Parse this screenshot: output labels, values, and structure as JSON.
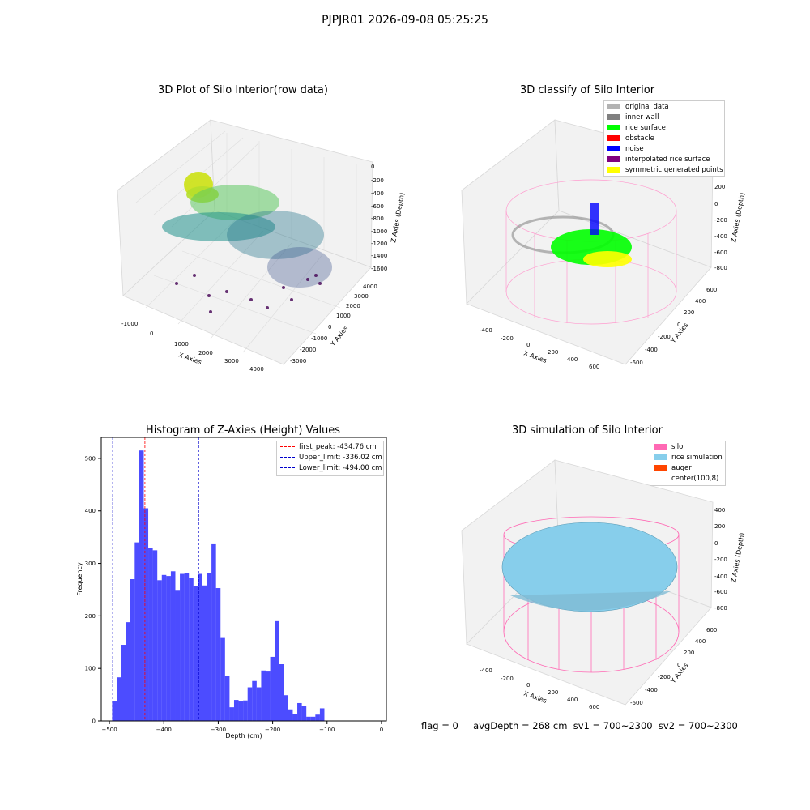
{
  "suptitle": "PJPJR01 2026-09-08 05:25:25",
  "panels": {
    "raw": {
      "title": "3D Plot of Silo Interior(row data)",
      "xlabel": "X Axies",
      "ylabel": "Y Axies",
      "zlabel": "Z Axies (Depth)",
      "xticks": [
        "-1000",
        "0",
        "1000",
        "2000",
        "3000",
        "4000"
      ],
      "yticks": [
        "-3000",
        "-2000",
        "-1000",
        "0",
        "1000",
        "2000",
        "3000",
        "4000"
      ],
      "zticks": [
        "0",
        "-200",
        "-400",
        "-600",
        "-800",
        "-1000",
        "-1200",
        "-1400",
        "-1600"
      ]
    },
    "classify": {
      "title": "3D classify of Silo Interior",
      "xlabel": "X Axies",
      "ylabel": "Y Axies",
      "zlabel": "Z Axies (Depth)",
      "xticks": [
        "-400",
        "-200",
        "0",
        "200",
        "400",
        "600"
      ],
      "yticks": [
        "-600",
        "-400",
        "-200",
        "0",
        "200",
        "400",
        "600"
      ],
      "zticks": [
        "200",
        "0",
        "-200",
        "-400",
        "-600",
        "-800"
      ],
      "legend": [
        {
          "label": "original data",
          "color": "#b3b3b3"
        },
        {
          "label": "inner wall",
          "color": "#808080"
        },
        {
          "label": "rice surface",
          "color": "#00ff00"
        },
        {
          "label": "obstacle",
          "color": "#ff0000"
        },
        {
          "label": "noise",
          "color": "#0000ff"
        },
        {
          "label": "interpolated rice surface",
          "color": "#800080"
        },
        {
          "label": "symmetric generated points",
          "color": "#ffff00"
        }
      ]
    },
    "simulation": {
      "title": "3D simulation of Silo Interior",
      "xlabel": "X Axies",
      "ylabel": "Y Axies",
      "zlabel": "Z Axies (Depth)",
      "xticks": [
        "-400",
        "-200",
        "0",
        "200",
        "400",
        "600"
      ],
      "yticks": [
        "-600",
        "-400",
        "-200",
        "0",
        "200",
        "400",
        "600"
      ],
      "zticks": [
        "400",
        "200",
        "0",
        "-200",
        "-400",
        "-600",
        "-800"
      ],
      "legend": [
        {
          "label": "silo",
          "color": "#ff69b4"
        },
        {
          "label": "rice simulation",
          "color": "#87ceeb"
        },
        {
          "label": "auger",
          "color": "#ff4500"
        },
        {
          "label": "center(100,8)",
          "color": "#ffffff"
        }
      ]
    },
    "footer": {
      "flag": "flag = 0",
      "stats": "avgDepth = 268 cm  sv1 = 700~2300  sv2 = 700~2300"
    }
  },
  "chart_data": [
    {
      "type": "histogram",
      "title": "Histogram of Z-Axies (Height) Values",
      "xlabel": "Depth (cm)",
      "ylabel": "Frequency",
      "xlim": [
        -515,
        9
      ],
      "ylim": [
        0,
        540
      ],
      "bin_start": -495,
      "bin_width": 8.3,
      "xticks": [
        -500,
        -400,
        -300,
        -200,
        -100,
        0
      ],
      "yticks": [
        0,
        100,
        200,
        300,
        400,
        500
      ],
      "bar_color": "#0000ff",
      "counts": [
        38,
        83,
        145,
        188,
        270,
        340,
        515,
        405,
        330,
        325,
        268,
        278,
        276,
        285,
        248,
        280,
        282,
        272,
        257,
        280,
        258,
        281,
        338,
        253,
        158,
        85,
        26,
        40,
        37,
        39,
        64,
        76,
        64,
        96,
        94,
        122,
        190,
        108,
        49,
        22,
        13,
        34,
        29,
        8,
        8,
        12,
        24
      ],
      "lines": [
        {
          "label": "first_peak: -434.76 cm",
          "value": -434.76,
          "color": "#ff0000"
        },
        {
          "label": "Upper_limit: -336.02 cm",
          "value": -336.02,
          "color": "#0000cc"
        },
        {
          "label": "Lower_limit: -494.00 cm",
          "value": -494.0,
          "color": "#0000cc"
        }
      ],
      "legend_position": "top-right"
    }
  ]
}
